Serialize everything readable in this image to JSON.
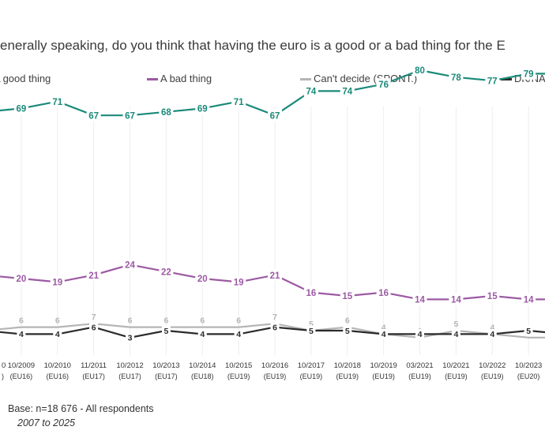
{
  "title": "enerally speaking, do you think that having the euro is a good or a bad thing for the E",
  "footer": {
    "base": "Base: n=18 676 -  All respondents",
    "period": "2007 to 2025"
  },
  "colors": {
    "good": "#1a8a7a",
    "bad": "#9c5aa3",
    "cant": "#b5b5b5",
    "dk": "#2b2b2b"
  },
  "chart_data": {
    "type": "line",
    "categories": [
      {
        "date": "",
        "sub": ""
      },
      {
        "date": "10/2009",
        "sub": "(EU16)"
      },
      {
        "date": "10/2010",
        "sub": "(EU16)"
      },
      {
        "date": "11/2011",
        "sub": "(EU17)"
      },
      {
        "date": "10/2012",
        "sub": "(EU17)"
      },
      {
        "date": "10/2013",
        "sub": "(EU17)"
      },
      {
        "date": "10/2014",
        "sub": "(EU18)"
      },
      {
        "date": "10/2015",
        "sub": "(EU19)"
      },
      {
        "date": "10/2016",
        "sub": "(EU19)"
      },
      {
        "date": "10/2017",
        "sub": "(EU19)"
      },
      {
        "date": "10/2018",
        "sub": "(EU19)"
      },
      {
        "date": "10/2019",
        "sub": "(EU19)"
      },
      {
        "date": "03/2021",
        "sub": "(EU19)"
      },
      {
        "date": "10/2021",
        "sub": "(EU19)"
      },
      {
        "date": "10/2022",
        "sub": "(EU19)"
      },
      {
        "date": "10/2023",
        "sub": "(EU20)"
      },
      {
        "date": "",
        "sub": ""
      }
    ],
    "series": [
      {
        "name": "A good thing",
        "key": "good",
        "values": [
          null,
          69,
          71,
          67,
          67,
          68,
          69,
          71,
          67,
          74,
          74,
          76,
          80,
          78,
          77,
          79,
          null
        ]
      },
      {
        "name": "A bad thing",
        "key": "bad",
        "values": [
          null,
          20,
          19,
          21,
          24,
          22,
          20,
          19,
          21,
          16,
          15,
          16,
          14,
          14,
          15,
          14,
          null
        ]
      },
      {
        "name": "Can't decide (SPONT.)",
        "key": "cant",
        "values": [
          null,
          6,
          6,
          7,
          6,
          6,
          6,
          6,
          7,
          5,
          6,
          4,
          3,
          5,
          4,
          3,
          null
        ]
      },
      {
        "name": "DK/NA",
        "key": "dk",
        "values": [
          null,
          4,
          4,
          6,
          3,
          5,
          4,
          4,
          6,
          5,
          5,
          4,
          4,
          4,
          4,
          5,
          null
        ]
      }
    ],
    "edge_values": {
      "left": {
        "good": 68,
        "bad": 21,
        "cant": 5,
        "dk": 5
      },
      "right": {
        "good": 79,
        "bad": 14,
        "cant": 3,
        "dk": 4
      }
    },
    "ylim": [
      0,
      100
    ],
    "grid": "vertical",
    "legend_position": "top",
    "labels_shown": {
      "good": [
        false,
        true,
        true,
        true,
        true,
        true,
        true,
        true,
        true,
        true,
        true,
        true,
        true,
        true,
        true,
        true,
        false
      ],
      "bad": [
        false,
        true,
        true,
        true,
        true,
        true,
        true,
        true,
        true,
        true,
        true,
        true,
        true,
        true,
        true,
        true,
        false
      ],
      "cant": [
        false,
        true,
        true,
        true,
        true,
        true,
        true,
        true,
        true,
        true,
        true,
        true,
        true,
        true,
        true,
        true,
        false
      ],
      "dk": [
        false,
        true,
        true,
        true,
        true,
        true,
        true,
        true,
        true,
        true,
        true,
        true,
        true,
        true,
        true,
        true,
        false
      ]
    }
  }
}
